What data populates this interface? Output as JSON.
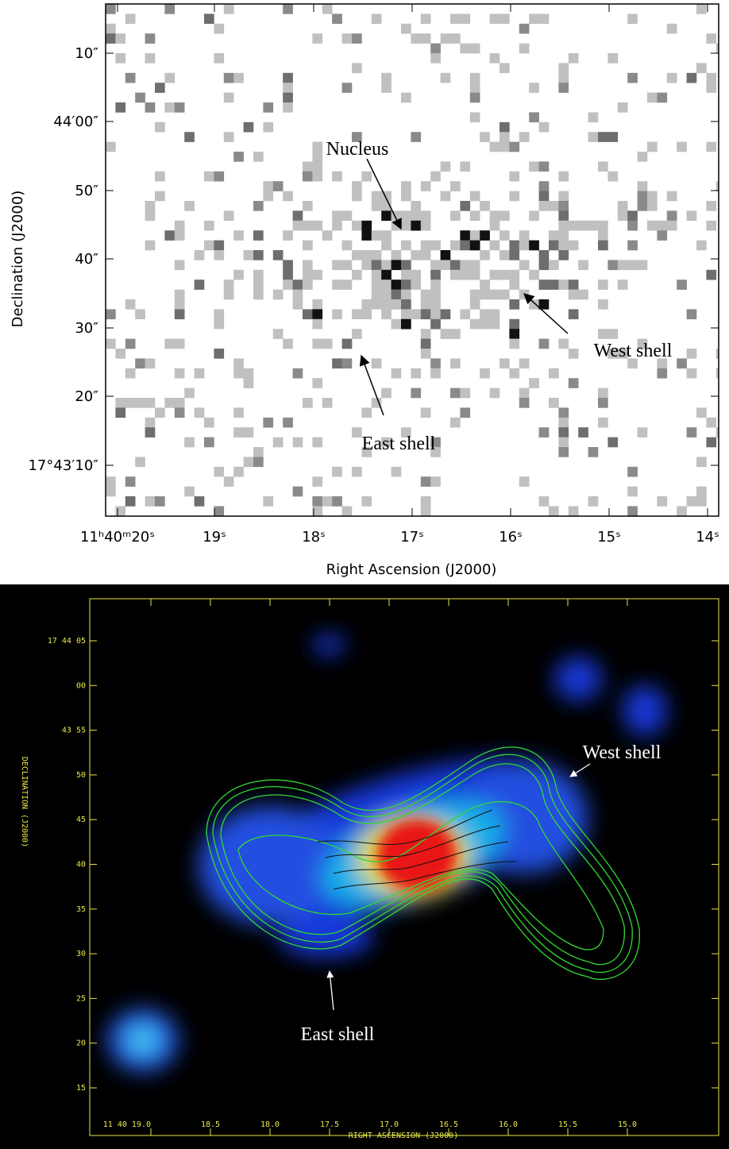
{
  "top_panel": {
    "y_tick_labels": [
      "10″",
      "44′00″",
      "50″",
      "40″",
      "30″",
      "20″",
      "17°43′10″"
    ],
    "x_tick_labels": [
      "11ʰ40ᵐ20ˢ",
      "19ˢ",
      "18ˢ",
      "17ˢ",
      "16ˢ",
      "15ˢ",
      "14ˢ"
    ],
    "x_axis_label": "Right Ascension (J2000)",
    "y_axis_label": "Declination (J2000)",
    "annotations": [
      "Nucleus",
      "West shell",
      "East shell"
    ]
  },
  "bottom_panel": {
    "y_tick_labels": [
      "17 44 05",
      "00",
      "43 55",
      "50",
      "45",
      "40",
      "35",
      "30",
      "25",
      "20",
      "15"
    ],
    "x_tick_labels": [
      "11 40 19.0",
      "18.5",
      "18.0",
      "17.5",
      "17.0",
      "16.5",
      "16.0",
      "15.5",
      "15.0"
    ],
    "x_axis_label": "RIGHT ASCENSION (J2000)",
    "y_axis_label": "DECLINATION (J2000)",
    "annotations": [
      "West shell",
      "East shell"
    ]
  }
}
